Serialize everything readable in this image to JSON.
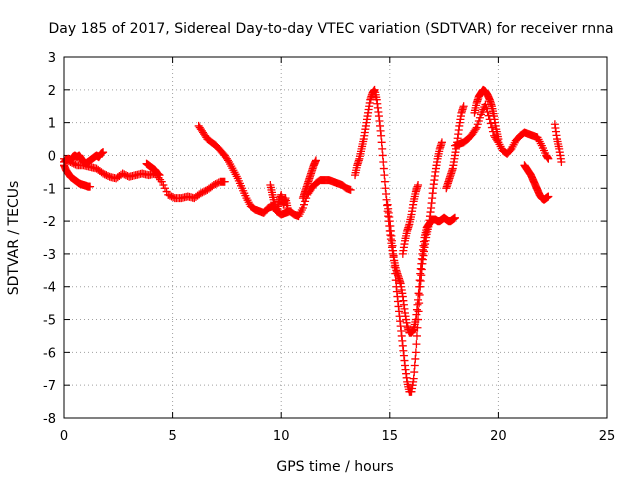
{
  "chart_data": {
    "type": "scatter",
    "title": "Day 185 of 2017, Sidereal Day-to-day VTEC variation (SDTVAR) for receiver rnna",
    "xlabel": "GPS time / hours",
    "ylabel": "SDTVAR / TECUs",
    "xlim": [
      0,
      25
    ],
    "ylim": [
      -8,
      3
    ],
    "xticks": [
      "0",
      "5",
      "10",
      "15",
      "20",
      "25"
    ],
    "yticks": [
      "3",
      "2",
      "1",
      "0",
      "-1",
      "-2",
      "-3",
      "-4",
      "-5",
      "-6",
      "-7",
      "-8"
    ],
    "grid": true,
    "marker": "plus",
    "color": "#ff0000",
    "segments": [
      {
        "x": [
          0.0,
          0.1,
          0.2,
          0.3,
          0.4,
          0.5,
          0.6,
          0.7,
          0.8,
          0.9,
          1.0,
          1.1,
          1.2
        ],
        "y": [
          -0.3,
          -0.45,
          -0.55,
          -0.65,
          -0.7,
          -0.75,
          -0.8,
          -0.85,
          -0.88,
          -0.9,
          -0.92,
          -0.95,
          -0.95
        ]
      },
      {
        "x": [
          0.0,
          0.1,
          0.2,
          0.3,
          0.4,
          0.5,
          0.6,
          0.7,
          0.8,
          0.9,
          1.0,
          1.1,
          1.2,
          1.3,
          1.4,
          1.5,
          1.6,
          1.7,
          1.8
        ],
        "y": [
          -0.2,
          -0.15,
          -0.1,
          -0.15,
          -0.05,
          0.0,
          -0.05,
          0.0,
          -0.1,
          -0.2,
          -0.25,
          -0.2,
          -0.15,
          -0.1,
          -0.05,
          0.0,
          -0.05,
          0.05,
          0.1
        ]
      },
      {
        "x": [
          0.0,
          0.3,
          0.6,
          0.9,
          1.2,
          1.5,
          1.8,
          2.1,
          2.4,
          2.7,
          3.0,
          3.3,
          3.6,
          3.9,
          4.2,
          4.5,
          4.8,
          5.1,
          5.4,
          5.7,
          6.0,
          6.3,
          6.6,
          6.9,
          7.2,
          7.4
        ],
        "y": [
          -0.1,
          -0.2,
          -0.3,
          -0.3,
          -0.35,
          -0.4,
          -0.55,
          -0.65,
          -0.7,
          -0.55,
          -0.65,
          -0.6,
          -0.55,
          -0.6,
          -0.55,
          -0.8,
          -1.2,
          -1.3,
          -1.3,
          -1.25,
          -1.3,
          -1.15,
          -1.05,
          -0.9,
          -0.8,
          -0.8
        ]
      },
      {
        "x": [
          3.8,
          3.9,
          4.0,
          4.1,
          4.2,
          4.3,
          4.4
        ],
        "y": [
          -0.25,
          -0.3,
          -0.35,
          -0.4,
          -0.45,
          -0.55,
          -0.6
        ]
      },
      {
        "x": [
          6.2,
          6.4,
          6.6,
          6.8,
          7.0,
          7.2,
          7.4,
          7.6,
          7.8,
          8.0,
          8.2,
          8.4,
          8.6,
          8.8,
          9.0,
          9.2,
          9.4,
          9.6,
          9.8,
          10.0,
          10.2,
          10.4,
          10.6,
          10.8,
          11.0,
          11.2,
          11.4,
          11.6,
          11.8,
          12.0,
          12.2,
          12.4,
          12.6,
          12.8,
          13.0,
          13.2
        ],
        "y": [
          0.9,
          0.7,
          0.5,
          0.4,
          0.3,
          0.15,
          0.0,
          -0.2,
          -0.45,
          -0.7,
          -1.0,
          -1.3,
          -1.55,
          -1.65,
          -1.7,
          -1.75,
          -1.6,
          -1.55,
          -1.7,
          -1.8,
          -1.75,
          -1.7,
          -1.8,
          -1.85,
          -1.6,
          -1.2,
          -1.0,
          -0.85,
          -0.75,
          -0.75,
          -0.75,
          -0.8,
          -0.85,
          -0.9,
          -1.0,
          -1.05
        ]
      },
      {
        "x": [
          9.5,
          9.6,
          9.7,
          9.8,
          9.9,
          10.0,
          10.1,
          10.2,
          10.3
        ],
        "y": [
          -0.9,
          -1.2,
          -1.5,
          -1.7,
          -1.4,
          -1.2,
          -1.5,
          -1.3,
          -1.6
        ]
      },
      {
        "x": [
          11.0,
          11.1,
          11.2,
          11.3,
          11.4,
          11.5,
          11.6
        ],
        "y": [
          -1.3,
          -1.1,
          -0.9,
          -0.7,
          -0.5,
          -0.3,
          -0.15
        ]
      },
      {
        "x": [
          13.4,
          13.5,
          13.6,
          13.7,
          13.8,
          13.9,
          14.0,
          14.1,
          14.2,
          14.3,
          14.4,
          14.5,
          14.6,
          14.7,
          14.8,
          14.9,
          15.0,
          15.1,
          15.2,
          15.3,
          15.4,
          15.5,
          15.6,
          15.7,
          15.8,
          15.9,
          16.0,
          16.1,
          16.2,
          16.3,
          16.4,
          16.5,
          16.6,
          16.7,
          16.8,
          16.9,
          17.0,
          17.1,
          17.2,
          17.3,
          17.4,
          17.5,
          17.6,
          17.7,
          17.8,
          17.9,
          18.0
        ],
        "y": [
          -0.6,
          -0.3,
          -0.1,
          0.2,
          0.5,
          0.9,
          1.3,
          1.7,
          1.9,
          2.0,
          1.7,
          1.2,
          0.6,
          -0.2,
          -1.0,
          -1.7,
          -2.3,
          -2.8,
          -3.2,
          -3.5,
          -3.7,
          -3.9,
          -4.3,
          -4.8,
          -5.2,
          -5.4,
          -5.4,
          -5.3,
          -5.0,
          -4.4,
          -3.6,
          -3.0,
          -2.5,
          -2.2,
          -2.1,
          -2.0,
          -1.95,
          -1.95,
          -2.0,
          -2.0,
          -1.95,
          -1.9,
          -1.95,
          -2.0,
          -2.0,
          -1.95,
          -1.9
        ]
      },
      {
        "x": [
          14.9,
          15.0,
          15.1,
          15.2,
          15.3,
          15.4,
          15.5,
          15.6,
          15.7,
          15.8,
          15.9,
          16.0,
          16.1,
          16.2,
          16.3,
          16.4,
          16.5,
          16.6,
          16.7,
          16.8,
          16.9,
          17.0,
          17.1,
          17.2,
          17.3,
          17.4
        ],
        "y": [
          -1.5,
          -2.0,
          -2.6,
          -3.2,
          -4.0,
          -4.6,
          -5.2,
          -5.8,
          -6.4,
          -6.9,
          -7.2,
          -7.2,
          -6.8,
          -6.0,
          -5.0,
          -4.0,
          -3.3,
          -2.8,
          -2.4,
          -2.1,
          -1.6,
          -1.0,
          -0.5,
          -0.1,
          0.2,
          0.4
        ]
      },
      {
        "x": [
          15.6,
          15.7,
          15.8,
          15.9,
          16.0,
          16.1,
          16.2,
          16.3
        ],
        "y": [
          -3.0,
          -2.6,
          -2.3,
          -2.1,
          -1.8,
          -1.4,
          -1.1,
          -0.9
        ]
      },
      {
        "x": [
          18.0,
          18.2,
          18.4,
          18.6,
          18.8,
          19.0,
          19.2,
          19.4,
          19.6,
          19.8,
          20.0,
          20.2,
          20.4,
          20.6,
          20.8,
          21.0,
          21.2,
          21.4,
          21.6,
          21.8,
          22.0,
          22.2,
          22.3
        ],
        "y": [
          0.3,
          0.35,
          0.4,
          0.5,
          0.65,
          0.85,
          1.25,
          1.55,
          1.1,
          0.6,
          0.4,
          0.15,
          0.05,
          0.2,
          0.45,
          0.6,
          0.7,
          0.65,
          0.6,
          0.55,
          0.3,
          0.0,
          -0.1
        ]
      },
      {
        "x": [
          17.6,
          17.7,
          17.8,
          17.9,
          18.0,
          18.1,
          18.2,
          18.3,
          18.4
        ],
        "y": [
          -1.0,
          -0.8,
          -0.6,
          -0.4,
          0.0,
          0.4,
          0.9,
          1.3,
          1.5
        ]
      },
      {
        "x": [
          18.9,
          19.0,
          19.1,
          19.2,
          19.3,
          19.4,
          19.5,
          19.6,
          19.7,
          19.8,
          19.9,
          20.0
        ],
        "y": [
          1.3,
          1.6,
          1.8,
          1.9,
          2.0,
          1.95,
          1.85,
          1.7,
          1.5,
          1.2,
          0.8,
          0.5
        ]
      },
      {
        "x": [
          21.2,
          21.3,
          21.4,
          21.5,
          21.6,
          21.7,
          21.8,
          21.9,
          22.0,
          22.1,
          22.2,
          22.3
        ],
        "y": [
          -0.3,
          -0.4,
          -0.5,
          -0.6,
          -0.75,
          -0.9,
          -1.05,
          -1.2,
          -1.3,
          -1.35,
          -1.3,
          -1.25
        ]
      },
      {
        "x": [
          22.6,
          22.7,
          22.8,
          22.9
        ],
        "y": [
          0.95,
          0.5,
          0.2,
          -0.2
        ]
      }
    ]
  }
}
